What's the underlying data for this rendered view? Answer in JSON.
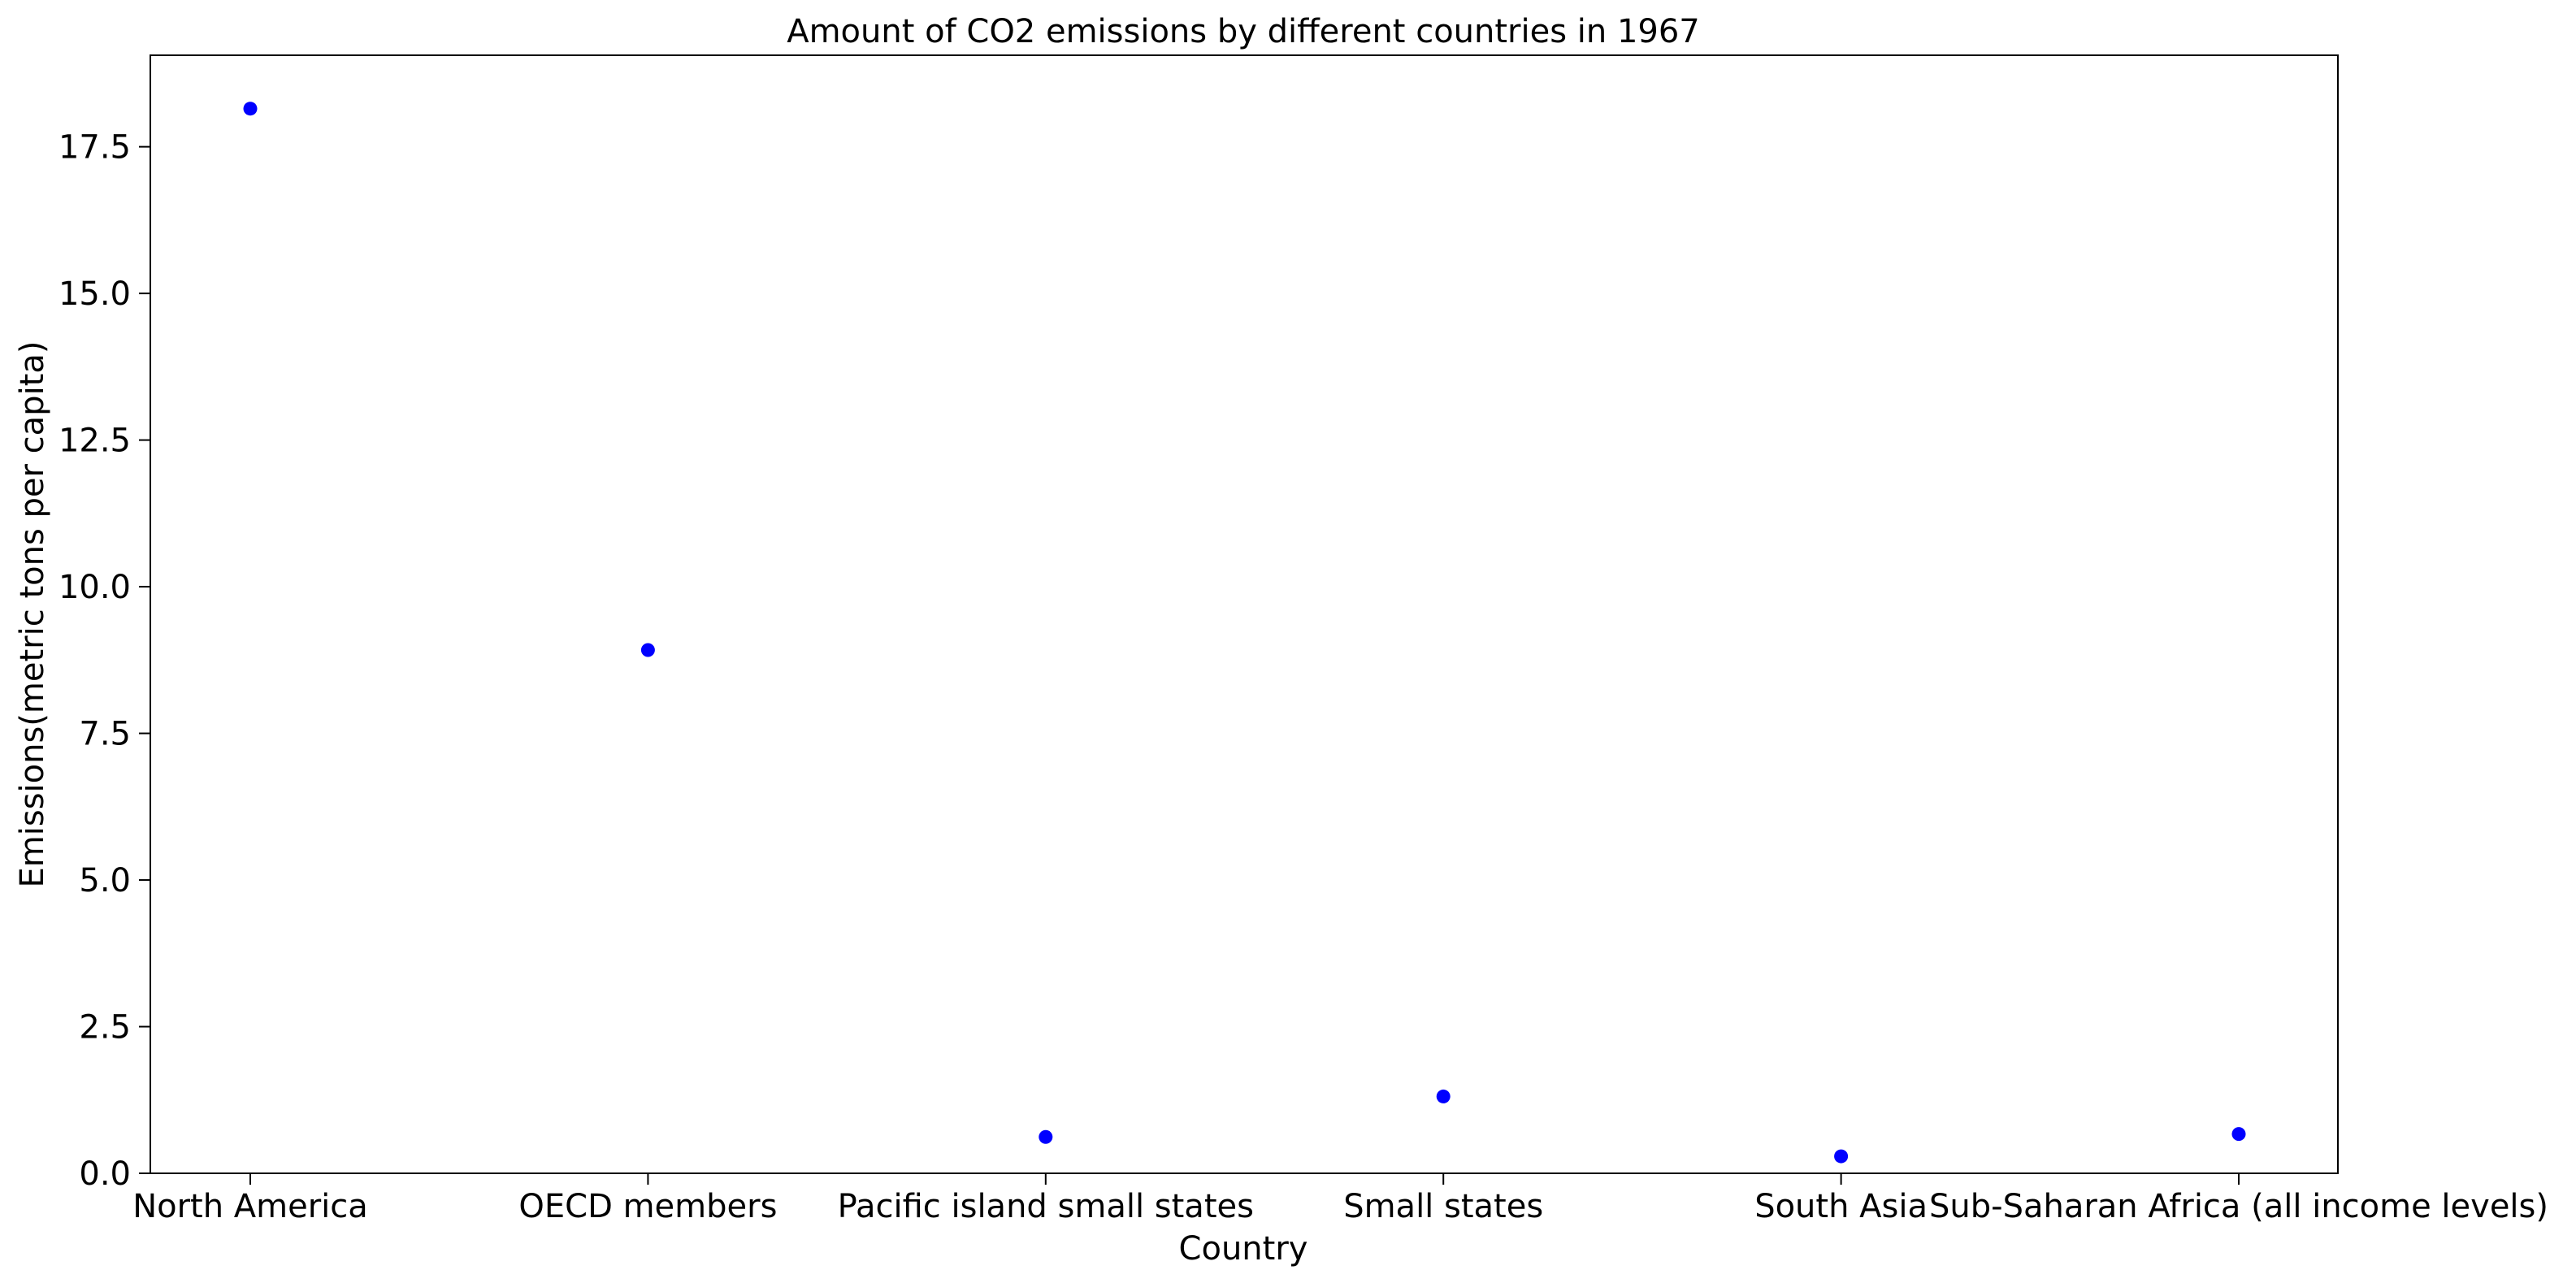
{
  "chart_data": {
    "type": "scatter",
    "title": "Amount of CO2 emissions by different countries in 1967",
    "xlabel": "Country",
    "ylabel": "Emissions(metric tons per capita)",
    "categories": [
      "North America",
      "OECD members",
      "Pacific island small states",
      "Small states",
      "South Asia",
      "Sub-Saharan Africa (all income levels)"
    ],
    "values": [
      18.15,
      8.92,
      0.62,
      1.31,
      0.29,
      0.67
    ],
    "ylim": [
      0,
      19.06
    ],
    "yticks": [
      0.0,
      2.5,
      5.0,
      7.5,
      10.0,
      12.5,
      15.0,
      17.5
    ],
    "ytick_labels": [
      "0.0",
      "2.5",
      "5.0",
      "7.5",
      "10.0",
      "12.5",
      "15.0",
      "17.5"
    ],
    "grid": false,
    "legend": "none",
    "marker_color": "#0000ff"
  }
}
